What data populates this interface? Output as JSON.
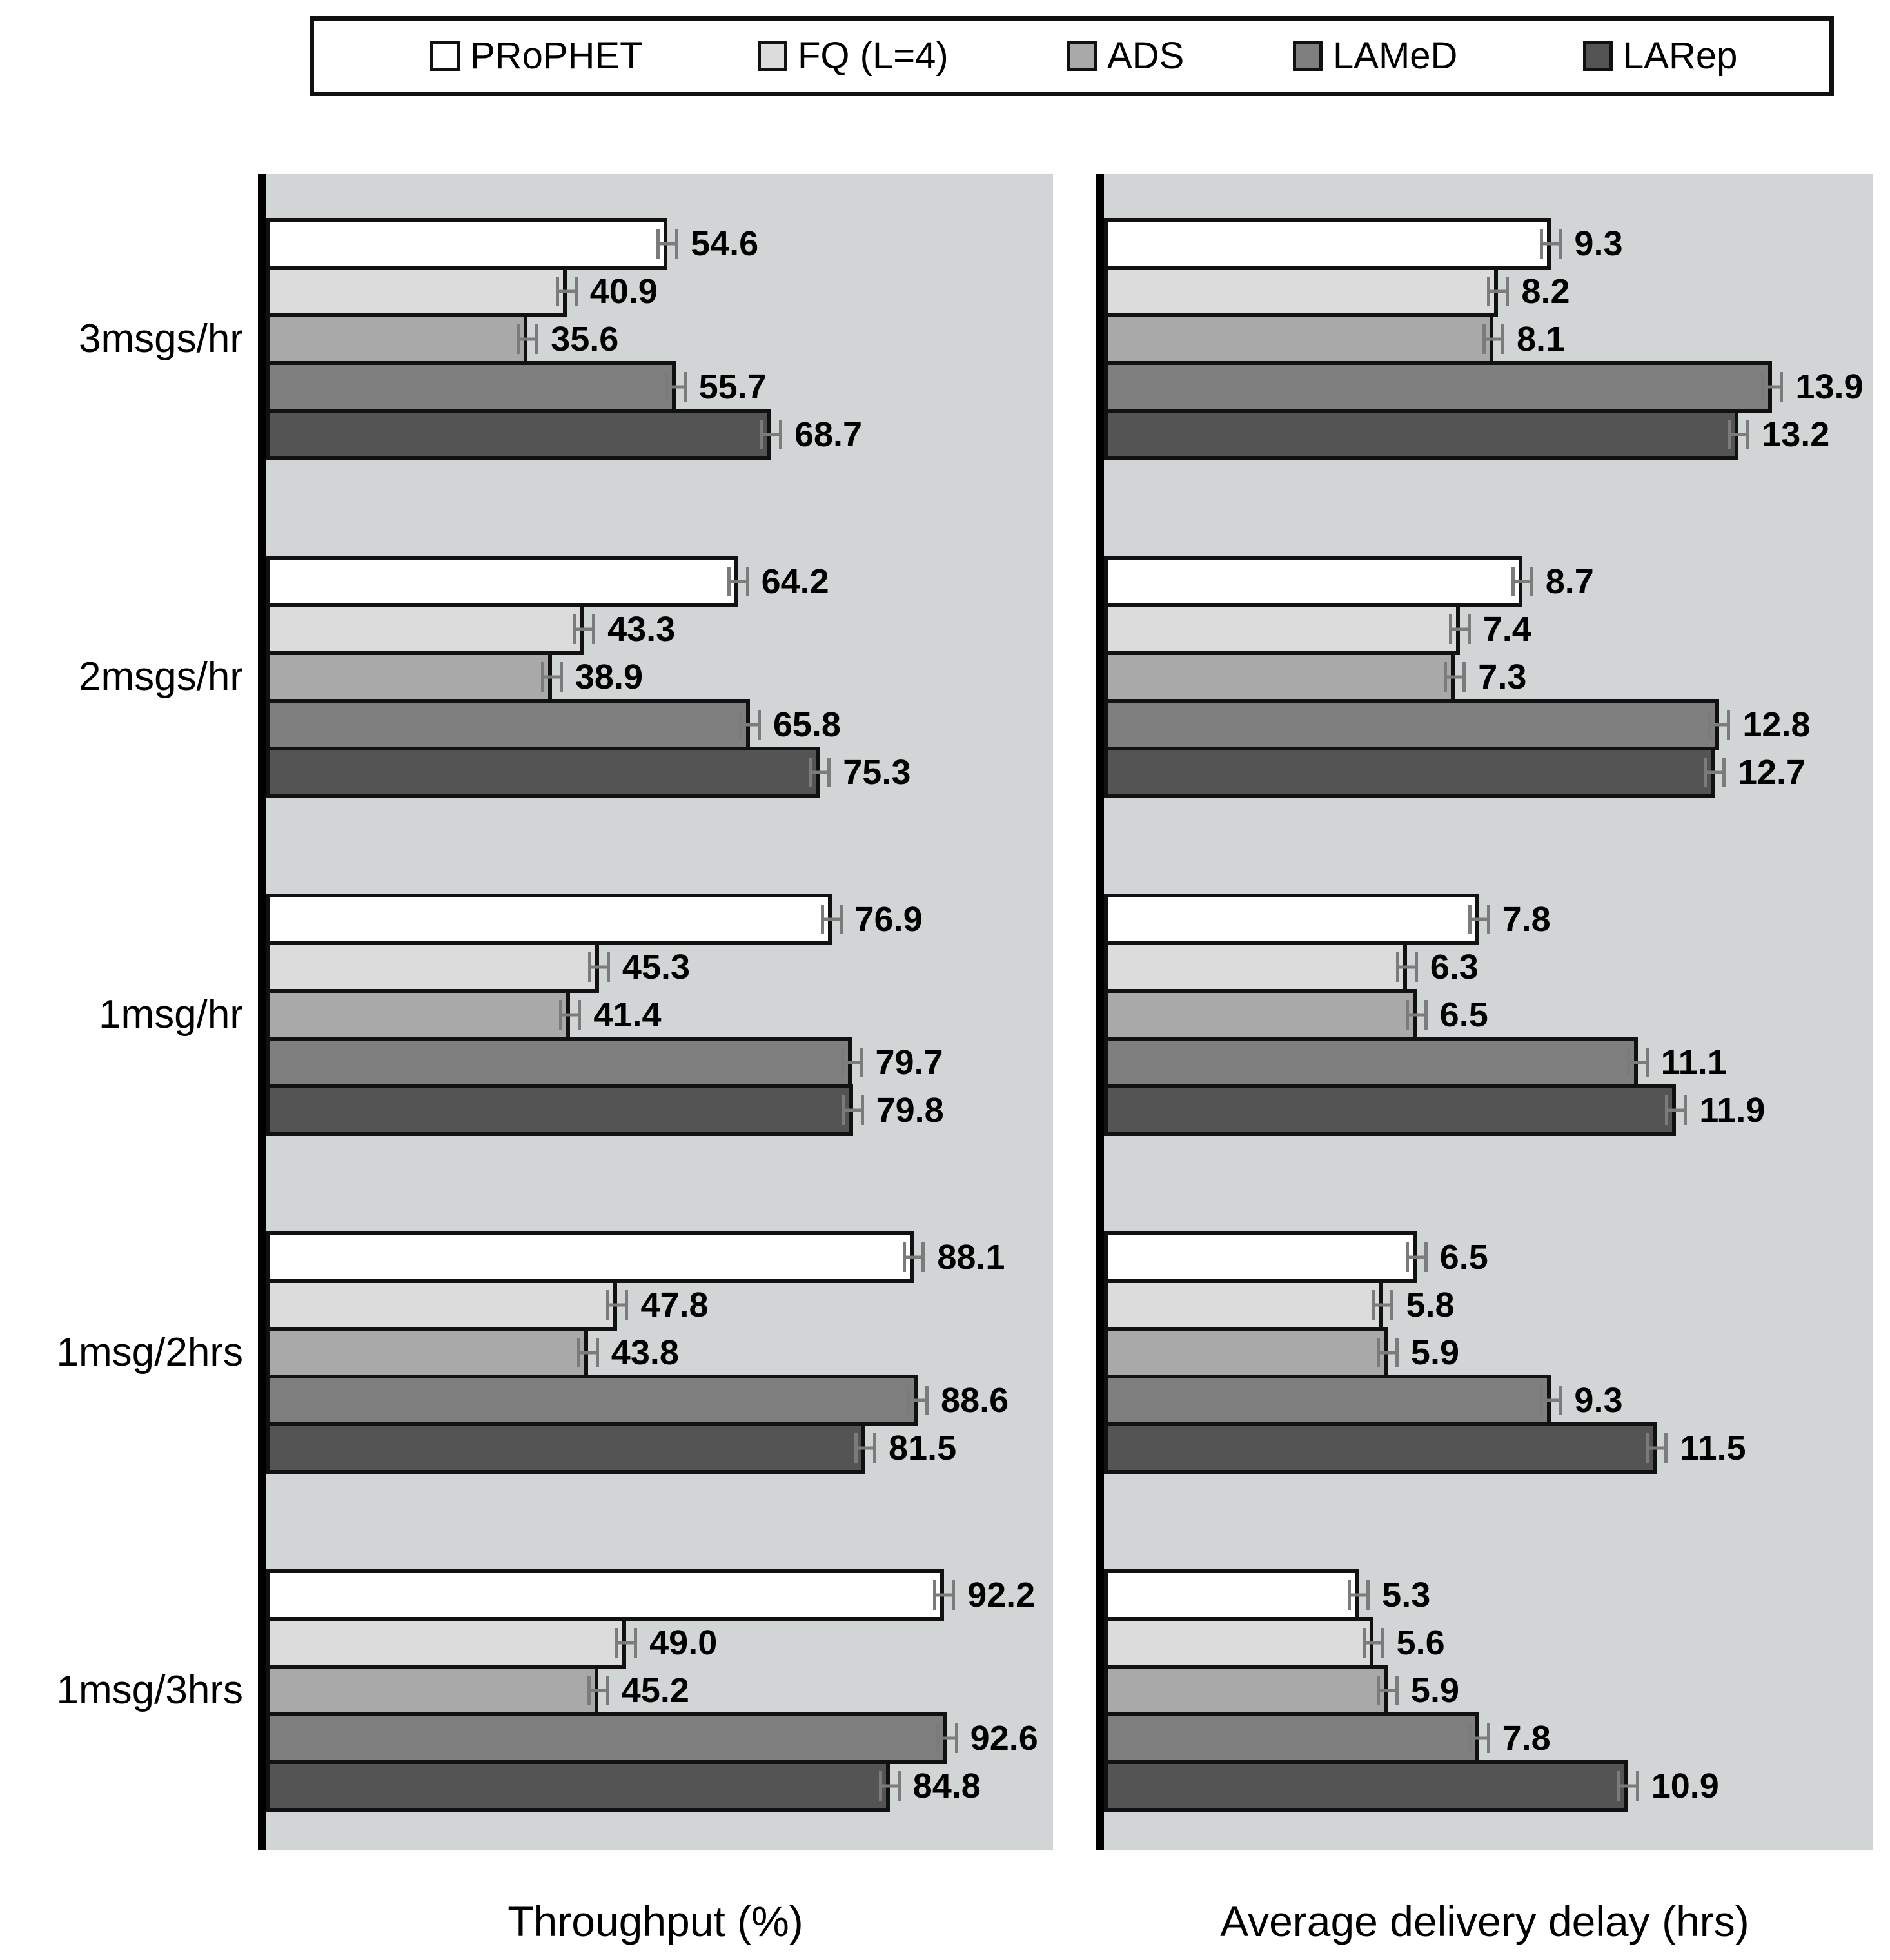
{
  "legend": {
    "items": [
      {
        "label": "PRoPHET",
        "color": "#ffffff"
      },
      {
        "label": "FQ (L=4)",
        "color": "#dcdcdc"
      },
      {
        "label": "ADS",
        "color": "#a9a9a9"
      },
      {
        "label": "LAMeD",
        "color": "#7f7f7f"
      },
      {
        "label": "LARep",
        "color": "#545454"
      }
    ]
  },
  "chart_data": {
    "type": "bar",
    "orientation": "horizontal",
    "grid": false,
    "error_bars_shown": true,
    "plot_background": "#d1d5d5",
    "bar_border_color": "#111111",
    "categories": [
      "3msgs/hr",
      "2msgs/hr",
      "1msg/hr",
      "1msg/2hrs",
      "1msg/3hrs"
    ],
    "panels": [
      {
        "xlabel": "Throughput (%)",
        "xmax": 107,
        "series": [
          {
            "name": "PRoPHET",
            "color": "#ffffff",
            "values": [
              "54.6",
              "64.2",
              "76.9",
              "88.1",
              "92.2"
            ]
          },
          {
            "name": "FQ (L=4)",
            "color": "#dcdcdc",
            "values": [
              "40.9",
              "43.3",
              "45.3",
              "47.8",
              "49.0"
            ]
          },
          {
            "name": "ADS",
            "color": "#a9a9a9",
            "values": [
              "35.6",
              "38.9",
              "41.4",
              "43.8",
              "45.2"
            ]
          },
          {
            "name": "LAMeD",
            "color": "#7f7f7f",
            "values": [
              "55.7",
              "65.8",
              "79.7",
              "88.6",
              "92.6"
            ]
          },
          {
            "name": "LARep",
            "color": "#545454",
            "values": [
              "68.7",
              "75.3",
              "79.8",
              "81.5",
              "84.8"
            ]
          }
        ]
      },
      {
        "xlabel": "Average delivery delay (hrs)",
        "xmax": 16,
        "series": [
          {
            "name": "PRoPHET",
            "color": "#ffffff",
            "values": [
              "9.3",
              "8.7",
              "7.8",
              "6.5",
              "5.3"
            ]
          },
          {
            "name": "FQ (L=4)",
            "color": "#dcdcdc",
            "values": [
              "8.2",
              "7.4",
              "6.3",
              "5.8",
              "5.6"
            ]
          },
          {
            "name": "ADS",
            "color": "#a9a9a9",
            "values": [
              "8.1",
              "7.3",
              "6.5",
              "5.9",
              "5.9"
            ]
          },
          {
            "name": "LAMeD",
            "color": "#7f7f7f",
            "values": [
              "13.9",
              "12.8",
              "11.1",
              "9.3",
              "7.8"
            ]
          },
          {
            "name": "LARep",
            "color": "#545454",
            "values": [
              "13.2",
              "12.7",
              "11.9",
              "11.5",
              "10.9"
            ]
          }
        ]
      }
    ]
  }
}
